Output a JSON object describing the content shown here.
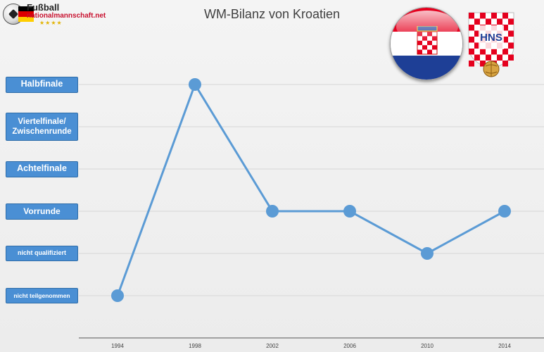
{
  "branding": {
    "site_line1": "Fußball",
    "site_line2": "nationalmannschaft.net",
    "stars": "★★★★"
  },
  "crest": {
    "letters": "HNS"
  },
  "colors": {
    "series": "#5b9bd5",
    "label_box": "#4a8fd4",
    "croatia_red": "#e5001e",
    "croatia_blue": "#1e3f96",
    "germany": [
      "#000000",
      "#dd0000",
      "#ffce00"
    ]
  },
  "chart_data": {
    "type": "line",
    "title": "WM-Bilanz von Kroatien",
    "xlabel": "",
    "ylabel": "",
    "grid": true,
    "y_categories": [
      "nicht teilgenommen",
      "nicht qualifiziert",
      "Vorrunde",
      "Achtelfinale",
      "Viertelfinale/ Zwischenrunde",
      "Halbfinale"
    ],
    "x": [
      "1994",
      "1998",
      "2002",
      "2006",
      "2010",
      "2014"
    ],
    "series": [
      {
        "values": [
          "nicht teilgenommen",
          "Halbfinale",
          "Vorrunde",
          "Vorrunde",
          "nicht qualifiziert",
          "Vorrunde"
        ]
      }
    ]
  }
}
